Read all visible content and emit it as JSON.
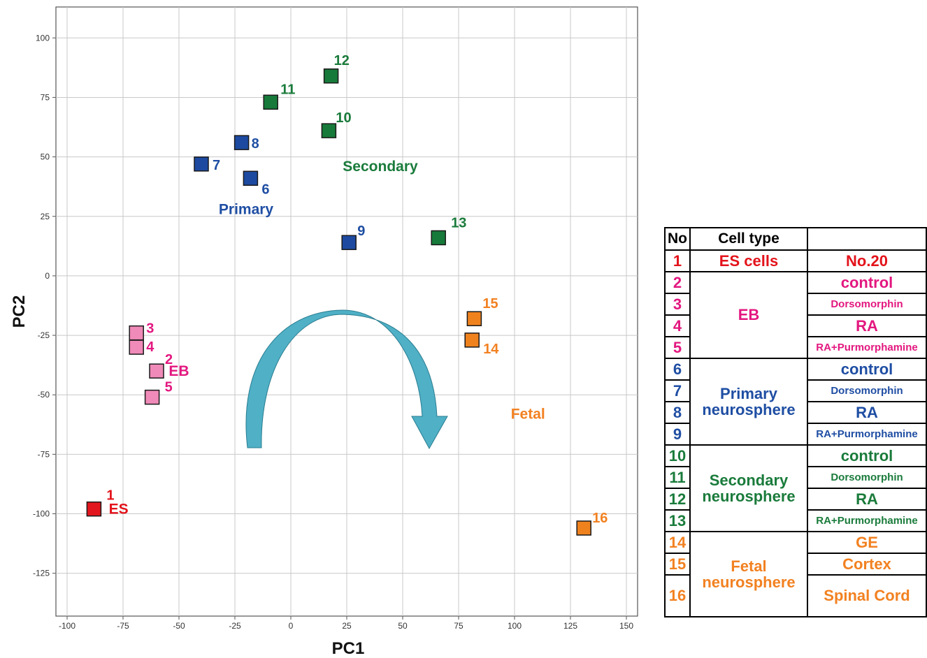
{
  "colors": {
    "ES": "#e3131b",
    "EB": "#e3177f",
    "Primary": "#1f4ea3",
    "Secondary": "#1a7b3b",
    "Fetal": "#f28121",
    "eb_fill": "#f08ab8",
    "es_fill": "#e2161e",
    "primary_fill": "#1d4aa0",
    "secondary_fill": "#177a3a",
    "fetal_fill": "#f0821e",
    "arrow": "#4fb0c6",
    "arrow_dark": "#2a7d90",
    "grid": "#c8c8c8"
  },
  "chart_data": {
    "type": "scatter",
    "xlabel": "PC1",
    "ylabel": "PC2",
    "xlim": [
      -105,
      155
    ],
    "ylim": [
      -143,
      113
    ],
    "xticks": [
      -100,
      -75,
      -50,
      -25,
      0,
      25,
      50,
      75,
      100,
      125,
      150
    ],
    "yticks": [
      -125,
      -100,
      -75,
      -50,
      -25,
      0,
      25,
      50,
      75,
      100
    ],
    "grid": true,
    "points": [
      {
        "id": "1",
        "x": -88,
        "y": -98,
        "group": "ES"
      },
      {
        "id": "2",
        "x": -60,
        "y": -40,
        "group": "EB"
      },
      {
        "id": "3",
        "x": -69,
        "y": -24,
        "group": "EB"
      },
      {
        "id": "4",
        "x": -69,
        "y": -30,
        "group": "EB"
      },
      {
        "id": "5",
        "x": -62,
        "y": -51,
        "group": "EB"
      },
      {
        "id": "6",
        "x": -18,
        "y": 41,
        "group": "Primary"
      },
      {
        "id": "7",
        "x": -40,
        "y": 47,
        "group": "Primary"
      },
      {
        "id": "8",
        "x": -22,
        "y": 56,
        "group": "Primary"
      },
      {
        "id": "9",
        "x": 26,
        "y": 14,
        "group": "Primary"
      },
      {
        "id": "10",
        "x": 17,
        "y": 61,
        "group": "Secondary"
      },
      {
        "id": "11",
        "x": -9,
        "y": 73,
        "group": "Secondary"
      },
      {
        "id": "12",
        "x": 18,
        "y": 84,
        "group": "Secondary"
      },
      {
        "id": "13",
        "x": 66,
        "y": 16,
        "group": "Secondary"
      },
      {
        "id": "14",
        "x": 81,
        "y": -27,
        "group": "Fetal"
      },
      {
        "id": "15",
        "x": 82,
        "y": -18,
        "group": "Fetal"
      },
      {
        "id": "16",
        "x": 131,
        "y": -106,
        "group": "Fetal"
      }
    ],
    "group_labels": [
      {
        "text": "ES",
        "group": "ES"
      },
      {
        "text": "EB",
        "group": "EB"
      },
      {
        "text": "Primary",
        "group": "Primary"
      },
      {
        "text": "Secondary",
        "group": "Secondary"
      },
      {
        "text": "Fetal",
        "group": "Fetal"
      }
    ]
  },
  "legend": {
    "header": {
      "no": "No",
      "cell_type": "Cell type",
      "condition": ""
    },
    "groups": [
      {
        "cell_type": "ES cells",
        "group": "ES",
        "rows": [
          {
            "no": "1",
            "condition": "No.20",
            "small": false
          }
        ]
      },
      {
        "cell_type": "EB",
        "group": "EB",
        "rows": [
          {
            "no": "2",
            "condition": "control",
            "small": false
          },
          {
            "no": "3",
            "condition": "Dorsomorphin",
            "small": true
          },
          {
            "no": "4",
            "condition": "RA",
            "small": false
          },
          {
            "no": "5",
            "condition": "RA+Purmorphamine",
            "small": true
          }
        ]
      },
      {
        "cell_type": "Primary neurosphere",
        "group": "Primary",
        "rows": [
          {
            "no": "6",
            "condition": "control",
            "small": false
          },
          {
            "no": "7",
            "condition": "Dorsomorphin",
            "small": true
          },
          {
            "no": "8",
            "condition": "RA",
            "small": false
          },
          {
            "no": "9",
            "condition": "RA+Purmorphamine",
            "small": true
          }
        ]
      },
      {
        "cell_type": "Secondary neurosphere",
        "group": "Secondary",
        "rows": [
          {
            "no": "10",
            "condition": "control",
            "small": false
          },
          {
            "no": "11",
            "condition": "Dorsomorphin",
            "small": true
          },
          {
            "no": "12",
            "condition": "RA",
            "small": false
          },
          {
            "no": "13",
            "condition": "RA+Purmorphamine",
            "small": true
          }
        ]
      },
      {
        "cell_type": "Fetal neurosphere",
        "group": "Fetal",
        "rows": [
          {
            "no": "14",
            "condition": "GE",
            "small": false
          },
          {
            "no": "15",
            "condition": "Cortex",
            "small": false
          },
          {
            "no": "16",
            "condition": "Spinal Cord",
            "small": false
          }
        ]
      }
    ]
  }
}
